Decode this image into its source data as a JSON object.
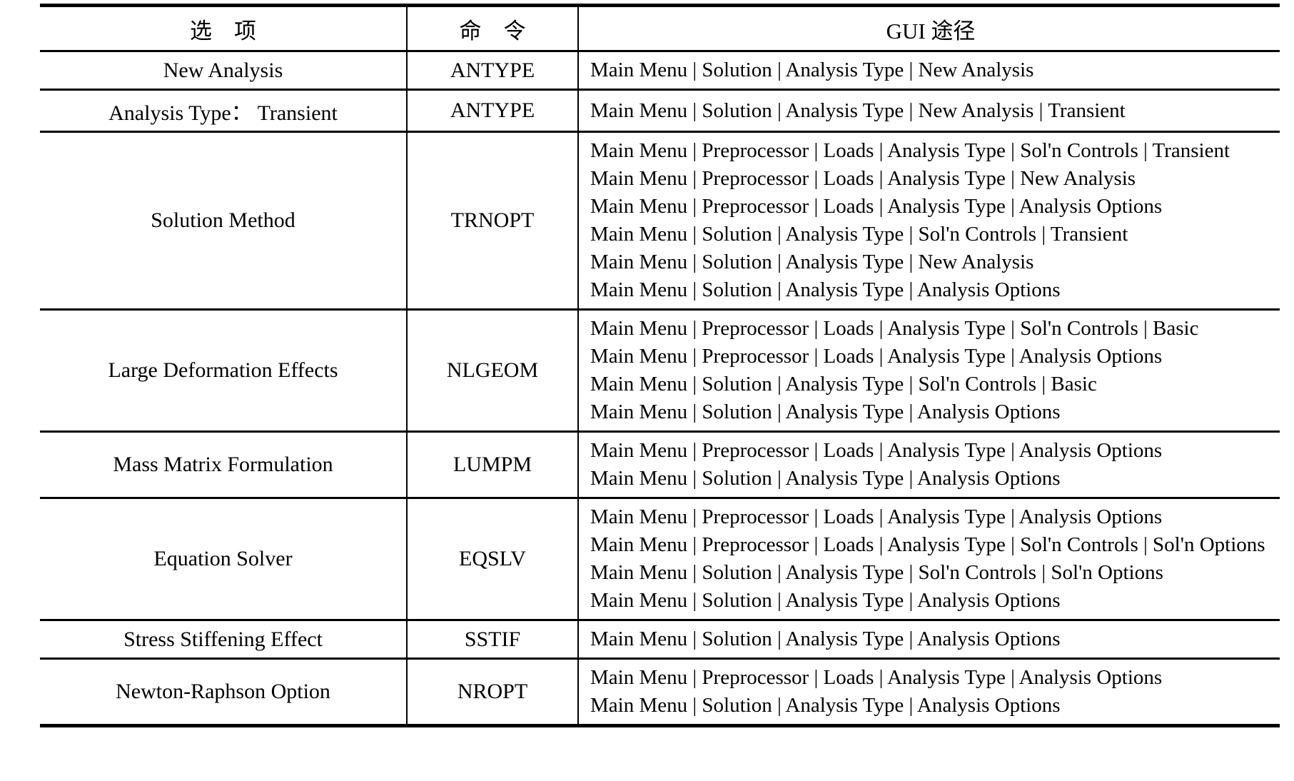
{
  "colors": {
    "text": "#000000",
    "background": "#ffffff",
    "rule": "#000000"
  },
  "table": {
    "headers": {
      "option": "选　项",
      "command": "命　令",
      "gui_path": "GUI 途径"
    },
    "rows": [
      {
        "option": "New Analysis",
        "command": "ANTYPE",
        "paths": [
          "Main Menu | Solution | Analysis Type | New Analysis"
        ]
      },
      {
        "option": "Analysis Type： Transient",
        "command": "ANTYPE",
        "paths": [
          "Main Menu | Solution | Analysis Type | New Analysis | Transient"
        ]
      },
      {
        "option": "Solution Method",
        "command": "TRNOPT",
        "paths": [
          "Main Menu | Preprocessor | Loads | Analysis Type | Sol'n Controls | Transient",
          "Main Menu | Preprocessor | Loads | Analysis Type | New Analysis",
          "Main Menu | Preprocessor | Loads | Analysis Type | Analysis Options",
          "Main Menu | Solution | Analysis Type | Sol'n Controls | Transient",
          "Main Menu | Solution | Analysis Type | New Analysis",
          "Main Menu | Solution | Analysis Type | Analysis Options"
        ]
      },
      {
        "option": "Large Deformation Effects",
        "command": "NLGEOM",
        "paths": [
          "Main Menu | Preprocessor | Loads | Analysis Type | Sol'n Controls | Basic",
          "Main Menu | Preprocessor | Loads | Analysis Type | Analysis Options",
          "Main Menu | Solution | Analysis Type | Sol'n Controls | Basic",
          "Main Menu | Solution | Analysis Type | Analysis Options"
        ]
      },
      {
        "option": "Mass Matrix Formulation",
        "command": "LUMPM",
        "paths": [
          "Main Menu | Preprocessor | Loads | Analysis Type | Analysis Options",
          "Main Menu | Solution | Analysis Type | Analysis Options"
        ]
      },
      {
        "option": "Equation Solver",
        "command": "EQSLV",
        "paths": [
          "Main Menu | Preprocessor | Loads | Analysis Type | Analysis Options",
          "Main Menu | Preprocessor | Loads | Analysis Type | Sol'n Controls | Sol'n Options",
          "Main Menu | Solution | Analysis Type | Sol'n Controls | Sol'n Options",
          "Main Menu | Solution | Analysis Type | Analysis Options"
        ]
      },
      {
        "option": "Stress Stiffening Effect",
        "command": "SSTIF",
        "paths": [
          "Main Menu | Solution | Analysis Type | Analysis Options"
        ]
      },
      {
        "option": "Newton-Raphson Option",
        "command": "NROPT",
        "paths": [
          "Main Menu | Preprocessor | Loads | Analysis Type | Analysis Options",
          "Main Menu | Solution | Analysis Type | Analysis Options"
        ]
      }
    ]
  }
}
